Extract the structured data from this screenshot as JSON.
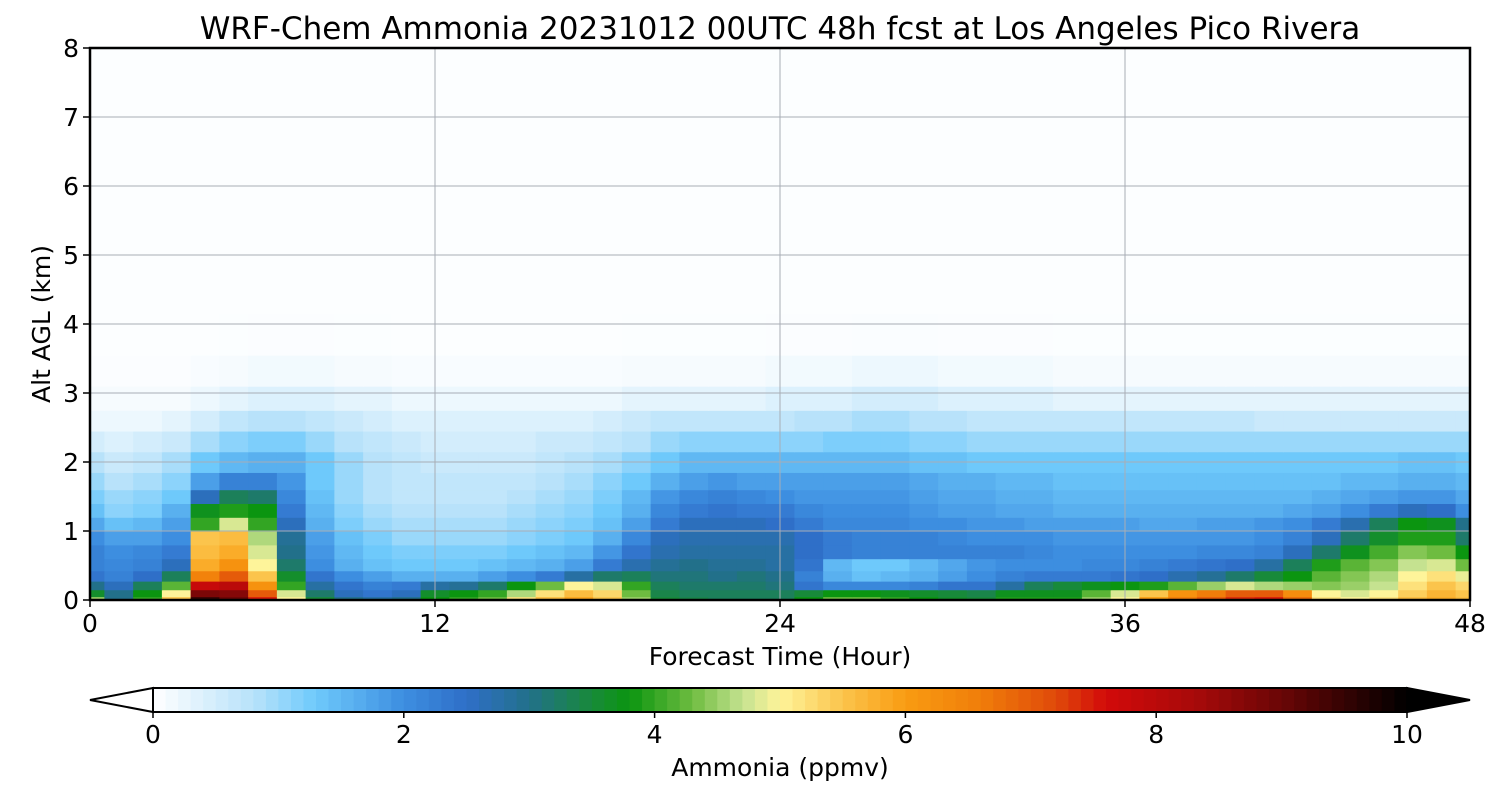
{
  "chart_data": {
    "type": "heatmap",
    "title": "WRF-Chem Ammonia  20231012 00UTC 48h fcst at Los Angeles Pico Rivera",
    "xlabel": "Forecast Time (Hour)",
    "ylabel": "Alt AGL (km)",
    "xlim": [
      0,
      48
    ],
    "ylim": [
      0,
      8
    ],
    "xticks": [
      0,
      12,
      24,
      36,
      48
    ],
    "yticks": [
      0,
      1,
      2,
      3,
      4,
      5,
      6,
      7,
      8
    ],
    "grid": true,
    "colorbar": {
      "label": "Ammonia  (ppmv)",
      "min": 0,
      "max": 10,
      "ticks": [
        0,
        2,
        4,
        6,
        8,
        10
      ],
      "extend": "both",
      "stops": [
        {
          "v": 0,
          "color": "#ffffff"
        },
        {
          "v": 0.8,
          "color": "#b8e2fa"
        },
        {
          "v": 1.3,
          "color": "#6ec9fb"
        },
        {
          "v": 2.0,
          "color": "#3d8ee0"
        },
        {
          "v": 2.5,
          "color": "#2f6fc8"
        },
        {
          "v": 3.0,
          "color": "#22708a"
        },
        {
          "v": 3.5,
          "color": "#188a3a"
        },
        {
          "v": 3.8,
          "color": "#0b9510"
        },
        {
          "v": 4.3,
          "color": "#6ebc40"
        },
        {
          "v": 4.7,
          "color": "#c5e290"
        },
        {
          "v": 5.0,
          "color": "#fef49a"
        },
        {
          "v": 5.5,
          "color": "#fbc44c"
        },
        {
          "v": 6.0,
          "color": "#f99c12"
        },
        {
          "v": 6.6,
          "color": "#f07d0a"
        },
        {
          "v": 7.2,
          "color": "#e04a0a"
        },
        {
          "v": 7.6,
          "color": "#d20a0a"
        },
        {
          "v": 8.3,
          "color": "#a80a0a"
        },
        {
          "v": 9.0,
          "color": "#6a0606"
        },
        {
          "v": 10,
          "color": "#000000"
        }
      ]
    },
    "hours": [
      0,
      1,
      2,
      3,
      4,
      5,
      6,
      7,
      8,
      9,
      10,
      11,
      12,
      13,
      14,
      15,
      16,
      17,
      18,
      19,
      20,
      21,
      22,
      23,
      24,
      25,
      26,
      27,
      28,
      29,
      30,
      31,
      32,
      33,
      34,
      35,
      36,
      37,
      38,
      39,
      40,
      41,
      42,
      43,
      44,
      45,
      46,
      47,
      48
    ],
    "levels_km": [
      0.0,
      0.1,
      0.2,
      0.35,
      0.5,
      0.7,
      0.9,
      1.1,
      1.3,
      1.5,
      1.7,
      2.0,
      2.3,
      2.6,
      2.9,
      3.3,
      3.8,
      4.5,
      6.0,
      8.0
    ],
    "ammonia_ppmv": [
      [
        4.5,
        3.0,
        4.0,
        5.5,
        9.5,
        9.0,
        7.5,
        5.0,
        3.5,
        3.0,
        2.8,
        3.0,
        3.8,
        4.0,
        4.3,
        5.2,
        5.6,
        5.9,
        5.5,
        4.5,
        3.5,
        3.4,
        3.3,
        3.3,
        3.3,
        3.8,
        4.3,
        4.3,
        4.0,
        3.8,
        3.6,
        3.5,
        3.9,
        3.9,
        3.9,
        4.5,
        5.0,
        6.0,
        6.6,
        7.0,
        7.4,
        7.5,
        6.8,
        5.2,
        5.0,
        5.2,
        5.6,
        5.8,
        5.6
      ],
      [
        3.6,
        3.0,
        3.8,
        5.0,
        8.8,
        8.7,
        7.0,
        4.8,
        3.2,
        2.6,
        2.4,
        2.6,
        3.6,
        3.8,
        4.0,
        4.6,
        5.2,
        5.6,
        5.3,
        4.3,
        3.4,
        3.3,
        3.3,
        3.3,
        3.3,
        3.5,
        3.8,
        3.8,
        3.7,
        3.6,
        3.5,
        3.4,
        3.7,
        3.7,
        3.7,
        4.2,
        4.8,
        5.5,
        6.2,
        6.6,
        7.0,
        7.0,
        6.3,
        5.0,
        4.8,
        5.0,
        5.4,
        5.7,
        5.5
      ],
      [
        3.0,
        2.6,
        3.3,
        4.2,
        7.8,
        8.0,
        6.2,
        4.0,
        2.8,
        2.4,
        2.2,
        2.3,
        2.8,
        2.9,
        3.2,
        3.8,
        4.3,
        5.0,
        4.8,
        4.0,
        3.3,
        3.2,
        3.2,
        3.2,
        3.1,
        2.4,
        2.1,
        2.1,
        2.1,
        2.2,
        2.4,
        2.4,
        2.8,
        3.3,
        3.5,
        3.7,
        3.8,
        3.9,
        4.2,
        4.5,
        4.8,
        4.6,
        4.5,
        4.4,
        4.5,
        4.7,
        5.2,
        5.5,
        5.3
      ],
      [
        2.4,
        2.2,
        2.5,
        3.3,
        6.5,
        7.0,
        5.5,
        3.6,
        2.4,
        2.0,
        1.8,
        1.6,
        1.6,
        1.6,
        1.8,
        2.0,
        2.3,
        2.8,
        3.2,
        3.3,
        3.1,
        3.1,
        3.0,
        3.1,
        3.0,
        2.2,
        1.6,
        1.4,
        1.5,
        1.6,
        1.8,
        2.0,
        2.2,
        2.3,
        2.3,
        2.3,
        2.4,
        2.5,
        2.7,
        2.9,
        3.2,
        3.5,
        3.8,
        4.2,
        4.4,
        4.6,
        5.0,
        5.2,
        4.9
      ],
      [
        2.2,
        2.1,
        2.2,
        2.6,
        5.8,
        6.2,
        5.0,
        3.2,
        2.0,
        1.6,
        1.4,
        1.3,
        1.3,
        1.3,
        1.4,
        1.5,
        1.6,
        1.8,
        2.3,
        2.7,
        2.9,
        3.0,
        2.9,
        2.9,
        2.8,
        2.4,
        1.5,
        1.3,
        1.3,
        1.5,
        1.7,
        1.9,
        2.0,
        2.0,
        2.0,
        2.1,
        2.1,
        2.2,
        2.3,
        2.4,
        2.5,
        2.8,
        3.3,
        3.9,
        4.2,
        4.4,
        4.7,
        4.8,
        4.3
      ],
      [
        2.2,
        2.0,
        2.1,
        2.3,
        5.6,
        5.8,
        4.8,
        3.0,
        1.9,
        1.5,
        1.3,
        1.2,
        1.2,
        1.2,
        1.2,
        1.3,
        1.4,
        1.5,
        1.9,
        2.4,
        2.7,
        2.8,
        2.8,
        2.8,
        2.8,
        2.5,
        2.3,
        2.2,
        2.2,
        2.2,
        2.2,
        2.2,
        2.2,
        2.1,
        2.0,
        2.0,
        2.0,
        2.0,
        2.0,
        2.1,
        2.1,
        2.2,
        2.6,
        3.2,
        3.7,
        4.1,
        4.4,
        4.3,
        3.8
      ],
      [
        2.0,
        1.8,
        1.8,
        2.0,
        5.5,
        5.6,
        4.6,
        2.9,
        1.8,
        1.4,
        1.2,
        1.0,
        1.0,
        1.0,
        1.0,
        1.1,
        1.2,
        1.3,
        1.6,
        2.1,
        2.6,
        2.7,
        2.7,
        2.7,
        2.7,
        2.5,
        2.3,
        2.2,
        2.2,
        2.2,
        2.1,
        2.0,
        2.0,
        2.0,
        1.9,
        1.9,
        1.9,
        1.9,
        1.9,
        1.9,
        1.9,
        2.0,
        2.2,
        2.6,
        3.2,
        3.6,
        3.9,
        3.9,
        3.2
      ],
      [
        1.7,
        1.4,
        1.5,
        1.8,
        4.0,
        4.8,
        4.0,
        2.6,
        1.6,
        1.2,
        1.0,
        0.9,
        0.9,
        0.9,
        0.9,
        1.0,
        1.1,
        1.2,
        1.4,
        1.8,
        2.3,
        2.6,
        2.6,
        2.6,
        2.5,
        2.3,
        2.1,
        2.1,
        2.1,
        2.0,
        2.0,
        1.9,
        1.9,
        1.8,
        1.8,
        1.8,
        1.8,
        1.7,
        1.7,
        1.8,
        1.8,
        1.9,
        2.0,
        2.3,
        2.7,
        3.3,
        3.8,
        3.7,
        3.0
      ],
      [
        1.4,
        1.1,
        1.2,
        1.6,
        3.7,
        3.9,
        3.8,
        2.3,
        1.5,
        1.1,
        0.9,
        0.8,
        0.8,
        0.8,
        0.8,
        0.9,
        1.0,
        1.1,
        1.3,
        1.6,
        2.1,
        2.3,
        2.4,
        2.3,
        2.3,
        2.1,
        2.0,
        2.0,
        2.0,
        1.9,
        1.8,
        1.8,
        1.7,
        1.7,
        1.6,
        1.6,
        1.6,
        1.6,
        1.6,
        1.6,
        1.6,
        1.6,
        1.7,
        1.8,
        2.0,
        2.3,
        2.6,
        2.5,
        2.0
      ],
      [
        1.2,
        1.0,
        1.1,
        1.3,
        2.6,
        3.3,
        3.2,
        2.1,
        1.4,
        1.0,
        0.8,
        0.7,
        0.7,
        0.7,
        0.7,
        0.8,
        0.9,
        1.0,
        1.2,
        1.5,
        1.9,
        2.1,
        2.2,
        2.1,
        2.0,
        1.9,
        1.9,
        1.9,
        1.9,
        1.8,
        1.7,
        1.7,
        1.6,
        1.6,
        1.5,
        1.5,
        1.5,
        1.5,
        1.5,
        1.5,
        1.5,
        1.5,
        1.5,
        1.6,
        1.7,
        1.8,
        1.9,
        1.9,
        1.7
      ],
      [
        1.0,
        0.8,
        0.9,
        1.1,
        1.8,
        2.2,
        2.2,
        1.9,
        1.3,
        1.0,
        0.8,
        0.7,
        0.7,
        0.7,
        0.7,
        0.7,
        0.8,
        0.9,
        1.1,
        1.3,
        1.6,
        1.8,
        1.9,
        1.8,
        1.8,
        1.8,
        1.8,
        1.8,
        1.8,
        1.7,
        1.6,
        1.6,
        1.5,
        1.5,
        1.4,
        1.4,
        1.4,
        1.4,
        1.4,
        1.4,
        1.4,
        1.4,
        1.4,
        1.4,
        1.5,
        1.5,
        1.6,
        1.6,
        1.5
      ],
      [
        0.8,
        0.6,
        0.7,
        0.9,
        1.3,
        1.5,
        1.6,
        1.6,
        1.3,
        1.0,
        0.8,
        0.7,
        0.6,
        0.6,
        0.6,
        0.6,
        0.7,
        0.8,
        0.9,
        1.1,
        1.3,
        1.5,
        1.5,
        1.5,
        1.5,
        1.5,
        1.5,
        1.5,
        1.5,
        1.4,
        1.4,
        1.3,
        1.3,
        1.3,
        1.3,
        1.3,
        1.3,
        1.3,
        1.3,
        1.3,
        1.3,
        1.3,
        1.3,
        1.3,
        1.3,
        1.3,
        1.4,
        1.4,
        1.3
      ],
      [
        0.5,
        0.4,
        0.5,
        0.6,
        0.9,
        1.1,
        1.2,
        1.2,
        1.0,
        0.8,
        0.7,
        0.6,
        0.5,
        0.5,
        0.5,
        0.5,
        0.6,
        0.6,
        0.7,
        0.8,
        1.0,
        1.1,
        1.1,
        1.1,
        1.1,
        1.1,
        1.2,
        1.2,
        1.2,
        1.1,
        1.1,
        1.0,
        1.0,
        1.0,
        1.0,
        1.0,
        1.0,
        1.0,
        1.0,
        1.0,
        1.0,
        1.0,
        1.0,
        1.0,
        1.0,
        1.0,
        1.0,
        1.0,
        1.0
      ],
      [
        0.2,
        0.2,
        0.2,
        0.3,
        0.5,
        0.7,
        0.8,
        0.8,
        0.7,
        0.6,
        0.5,
        0.4,
        0.4,
        0.4,
        0.4,
        0.4,
        0.4,
        0.4,
        0.5,
        0.6,
        0.7,
        0.7,
        0.7,
        0.7,
        0.7,
        0.8,
        0.8,
        0.9,
        0.9,
        0.8,
        0.8,
        0.7,
        0.7,
        0.7,
        0.7,
        0.7,
        0.7,
        0.7,
        0.7,
        0.7,
        0.7,
        0.6,
        0.6,
        0.6,
        0.6,
        0.6,
        0.6,
        0.6,
        0.6
      ],
      [
        0.1,
        0.1,
        0.1,
        0.1,
        0.2,
        0.3,
        0.4,
        0.4,
        0.4,
        0.3,
        0.3,
        0.2,
        0.2,
        0.2,
        0.2,
        0.2,
        0.2,
        0.2,
        0.2,
        0.3,
        0.3,
        0.3,
        0.3,
        0.3,
        0.4,
        0.4,
        0.4,
        0.5,
        0.5,
        0.5,
        0.4,
        0.4,
        0.4,
        0.4,
        0.3,
        0.3,
        0.3,
        0.3,
        0.3,
        0.3,
        0.3,
        0.3,
        0.3,
        0.3,
        0.3,
        0.3,
        0.3,
        0.3,
        0.3
      ],
      [
        0.05,
        0.05,
        0.05,
        0.05,
        0.08,
        0.1,
        0.15,
        0.15,
        0.15,
        0.1,
        0.1,
        0.08,
        0.08,
        0.08,
        0.08,
        0.08,
        0.08,
        0.08,
        0.08,
        0.1,
        0.1,
        0.1,
        0.1,
        0.1,
        0.15,
        0.15,
        0.15,
        0.2,
        0.2,
        0.2,
        0.15,
        0.15,
        0.15,
        0.15,
        0.1,
        0.1,
        0.1,
        0.1,
        0.1,
        0.1,
        0.1,
        0.1,
        0.1,
        0.1,
        0.1,
        0.1,
        0.1,
        0.1,
        0.1
      ],
      [
        0.03,
        0.03,
        0.03,
        0.03,
        0.03,
        0.04,
        0.05,
        0.05,
        0.05,
        0.04,
        0.04,
        0.03,
        0.03,
        0.03,
        0.03,
        0.03,
        0.03,
        0.03,
        0.03,
        0.04,
        0.04,
        0.04,
        0.04,
        0.04,
        0.05,
        0.05,
        0.05,
        0.06,
        0.06,
        0.06,
        0.05,
        0.05,
        0.05,
        0.05,
        0.04,
        0.04,
        0.04,
        0.04,
        0.04,
        0.04,
        0.04,
        0.04,
        0.04,
        0.04,
        0.04,
        0.04,
        0.04,
        0.04,
        0.04
      ],
      [
        0.03,
        0.03,
        0.03,
        0.03,
        0.03,
        0.03,
        0.03,
        0.03,
        0.03,
        0.03,
        0.03,
        0.03,
        0.03,
        0.03,
        0.03,
        0.03,
        0.03,
        0.03,
        0.03,
        0.03,
        0.03,
        0.03,
        0.03,
        0.03,
        0.03,
        0.03,
        0.03,
        0.03,
        0.03,
        0.03,
        0.03,
        0.03,
        0.03,
        0.03,
        0.03,
        0.03,
        0.03,
        0.03,
        0.03,
        0.03,
        0.03,
        0.03,
        0.03,
        0.03,
        0.03,
        0.03,
        0.03,
        0.03,
        0.03
      ],
      [
        0.03,
        0.03,
        0.03,
        0.03,
        0.03,
        0.03,
        0.03,
        0.03,
        0.03,
        0.03,
        0.03,
        0.03,
        0.03,
        0.03,
        0.03,
        0.03,
        0.03,
        0.03,
        0.03,
        0.03,
        0.03,
        0.03,
        0.03,
        0.03,
        0.03,
        0.03,
        0.03,
        0.03,
        0.03,
        0.03,
        0.03,
        0.03,
        0.03,
        0.03,
        0.03,
        0.03,
        0.03,
        0.03,
        0.03,
        0.03,
        0.03,
        0.03,
        0.03,
        0.03,
        0.03,
        0.03,
        0.03,
        0.03,
        0.03
      ],
      [
        0.03,
        0.03,
        0.03,
        0.03,
        0.03,
        0.03,
        0.03,
        0.03,
        0.03,
        0.03,
        0.03,
        0.03,
        0.03,
        0.03,
        0.03,
        0.03,
        0.03,
        0.03,
        0.03,
        0.03,
        0.03,
        0.03,
        0.03,
        0.03,
        0.03,
        0.03,
        0.03,
        0.03,
        0.03,
        0.03,
        0.03,
        0.03,
        0.03,
        0.03,
        0.03,
        0.03,
        0.03,
        0.03,
        0.03,
        0.03,
        0.03,
        0.03,
        0.03,
        0.03,
        0.03,
        0.03,
        0.03,
        0.03,
        0.03
      ]
    ]
  }
}
